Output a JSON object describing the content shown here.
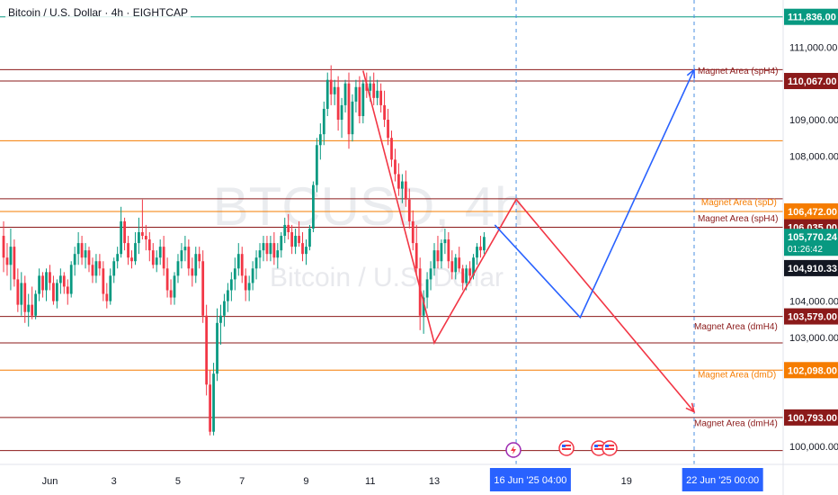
{
  "symbol_title": "Bitcoin / U.S. Dollar · 4h · EIGHTCAP",
  "watermark": {
    "main": "BTCUSD, 4h",
    "sub": "Bitcoin / U.S. Dollar"
  },
  "colors": {
    "bull": "#089981",
    "bear": "#f23645",
    "red_level": "#8b1a1a",
    "orange_level": "#f57c00",
    "blue_path": "#2962ff",
    "red_path": "#f23645",
    "dashed_time": "#4a90e2",
    "price_tag_dark": "#131722",
    "price_tag_green": "#089981",
    "time_tag": "#2962ff"
  },
  "chart_data": {
    "type": "candlestick",
    "ylim": [
      99500,
      112300
    ],
    "xlim": [
      0,
      218
    ],
    "y_ticks": [
      {
        "value": 111000,
        "label": "111,000.00"
      },
      {
        "value": 109000,
        "label": "109,000.00"
      },
      {
        "value": 108000,
        "label": "108,000.00"
      },
      {
        "value": 104000,
        "label": "104,000.00"
      },
      {
        "value": 103000,
        "label": "103,000.00"
      },
      {
        "value": 100000,
        "label": "100,000.00"
      }
    ],
    "x_ticks": [
      {
        "x": 13,
        "label": "Jun"
      },
      {
        "x": 31,
        "label": "3"
      },
      {
        "x": 49,
        "label": "5"
      },
      {
        "x": 67,
        "label": "7"
      },
      {
        "x": 85,
        "label": "9"
      },
      {
        "x": 103,
        "label": "11"
      },
      {
        "x": 121,
        "label": "13"
      },
      {
        "x": 175,
        "label": "19"
      }
    ],
    "time_tags": [
      {
        "x": 148,
        "label": "16 Jun '25  04:00"
      },
      {
        "x": 202,
        "label": "22 Jun '25  00:00"
      }
    ],
    "price_tags": [
      {
        "value": 111836,
        "label": "111,836.00",
        "kind": "green"
      },
      {
        "value": 110067,
        "label": "110,067.00",
        "kind": "darkred"
      },
      {
        "value": 106472,
        "label": "106,472.00",
        "kind": "orange"
      },
      {
        "value": 106035,
        "label": "106,035.00",
        "kind": "darkred"
      },
      {
        "value": 105770,
        "label": "105,770.24",
        "kind": "current",
        "sub": "01:26:42"
      },
      {
        "value": 104910,
        "label": "104,910.33",
        "kind": "dark"
      },
      {
        "value": 103579,
        "label": "103,579.00",
        "kind": "darkred"
      },
      {
        "value": 102098,
        "label": "102,098.00",
        "kind": "orange"
      },
      {
        "value": 100793,
        "label": "100,793.00",
        "kind": "darkred"
      }
    ],
    "levels": [
      {
        "value": 111836,
        "color": "#089981"
      },
      {
        "value": 110380,
        "color": "#8b1a1a"
      },
      {
        "value": 110067,
        "color": "#8b1a1a"
      },
      {
        "value": 108420,
        "color": "#f57c00"
      },
      {
        "value": 106820,
        "color": "#8b1a1a"
      },
      {
        "value": 106472,
        "color": "#f57c00"
      },
      {
        "value": 106035,
        "color": "#8b1a1a"
      },
      {
        "value": 103579,
        "color": "#8b1a1a"
      },
      {
        "value": 102850,
        "color": "#8b1a1a"
      },
      {
        "value": 102098,
        "color": "#f57c00"
      },
      {
        "value": 100793,
        "color": "#8b1a1a"
      },
      {
        "value": 99880,
        "color": "#8b1a1a"
      }
    ],
    "annotations": [
      {
        "x": 195,
        "value": 110260,
        "text": "Magnet Area (spH4)",
        "color": "#8b1a1a"
      },
      {
        "x": 196,
        "value": 106650,
        "text": "Magnet Area (spD)",
        "color": "#f57c00"
      },
      {
        "x": 195,
        "value": 106200,
        "text": "Magnet Area (spH4)",
        "color": "#8b1a1a"
      },
      {
        "x": 194,
        "value": 103220,
        "text": "Magnet Area (dmH4)",
        "color": "#8b1a1a"
      },
      {
        "x": 195,
        "value": 101900,
        "text": "Magnet Area (dmD)",
        "color": "#f57c00"
      },
      {
        "x": 194,
        "value": 100560,
        "text": "Magnet Area (dmH4)",
        "color": "#8b1a1a"
      }
    ],
    "red_path": [
      [
        101,
        110350
      ],
      [
        121,
        102850
      ],
      [
        144,
        106800
      ],
      [
        194,
        100950
      ]
    ],
    "blue_path": [
      [
        138,
        106100
      ],
      [
        162,
        103550
      ],
      [
        194,
        110380
      ]
    ],
    "time_lines": [
      144,
      194
    ],
    "candles": [
      [
        0,
        105800,
        106200,
        104800,
        105200
      ],
      [
        1,
        105200,
        105600,
        104700,
        105000
      ],
      [
        2,
        105000,
        106000,
        104300,
        105500
      ],
      [
        3,
        105500,
        105700,
        104400,
        104600
      ],
      [
        4,
        104600,
        104900,
        103700,
        103900
      ],
      [
        5,
        103900,
        104800,
        103600,
        104500
      ],
      [
        6,
        104500,
        104700,
        103400,
        103700
      ],
      [
        7,
        103700,
        104200,
        103300,
        103900
      ],
      [
        8,
        103900,
        104400,
        103500,
        103600
      ],
      [
        9,
        103600,
        104300,
        103500,
        104200
      ],
      [
        10,
        104200,
        104900,
        104000,
        104700
      ],
      [
        11,
        104700,
        104800,
        104100,
        104300
      ],
      [
        12,
        104300,
        104900,
        104000,
        104800
      ],
      [
        13,
        104800,
        105000,
        104300,
        104500
      ],
      [
        14,
        104500,
        104700,
        103900,
        104000
      ],
      [
        15,
        104000,
        104600,
        103800,
        104500
      ],
      [
        16,
        104500,
        104900,
        104200,
        104700
      ],
      [
        17,
        104700,
        104800,
        104200,
        104400
      ],
      [
        18,
        104400,
        104600,
        103900,
        104200
      ],
      [
        19,
        104200,
        105100,
        104100,
        105000
      ],
      [
        20,
        105000,
        105500,
        104700,
        105300
      ],
      [
        21,
        105300,
        105900,
        105000,
        105600
      ],
      [
        22,
        105600,
        105800,
        105000,
        105200
      ],
      [
        23,
        105200,
        105600,
        104900,
        105400
      ],
      [
        24,
        105400,
        105500,
        104800,
        105000
      ],
      [
        25,
        105000,
        105200,
        104500,
        104700
      ],
      [
        26,
        104700,
        105300,
        104500,
        105100
      ],
      [
        27,
        105100,
        105300,
        104700,
        104900
      ],
      [
        28,
        104900,
        105100,
        104000,
        104200
      ],
      [
        29,
        104200,
        104500,
        103800,
        104000
      ],
      [
        30,
        104000,
        104900,
        103900,
        104700
      ],
      [
        31,
        104700,
        105200,
        104500,
        105100
      ],
      [
        32,
        105100,
        105500,
        104900,
        105300
      ],
      [
        33,
        105300,
        106600,
        105200,
        106200
      ],
      [
        34,
        106200,
        106300,
        105400,
        105600
      ],
      [
        35,
        105600,
        105800,
        105000,
        105200
      ],
      [
        36,
        105200,
        105400,
        104900,
        105100
      ],
      [
        37,
        105100,
        105900,
        105000,
        105600
      ],
      [
        38,
        105600,
        106300,
        105300,
        105900
      ],
      [
        39,
        105900,
        106800,
        105700,
        105800
      ],
      [
        40,
        105800,
        106100,
        105400,
        105700
      ],
      [
        41,
        105700,
        105900,
        105100,
        105400
      ],
      [
        42,
        105400,
        105600,
        104900,
        105000
      ],
      [
        43,
        105000,
        105400,
        104800,
        105200
      ],
      [
        44,
        105200,
        105700,
        105000,
        105500
      ],
      [
        45,
        105500,
        105800,
        104700,
        104900
      ],
      [
        46,
        104900,
        105200,
        104100,
        104300
      ],
      [
        47,
        104300,
        104600,
        103900,
        104100
      ],
      [
        48,
        104100,
        104800,
        103900,
        104700
      ],
      [
        49,
        104700,
        105300,
        104500,
        105100
      ],
      [
        50,
        105100,
        105600,
        104900,
        105400
      ],
      [
        51,
        105400,
        105800,
        105100,
        105500
      ],
      [
        52,
        105500,
        105700,
        104700,
        104900
      ],
      [
        53,
        104900,
        105200,
        104400,
        104700
      ],
      [
        54,
        104700,
        105500,
        104500,
        105300
      ],
      [
        55,
        105300,
        105500,
        104900,
        105100
      ],
      [
        56,
        105100,
        105400,
        103400,
        103600
      ],
      [
        57,
        103600,
        103900,
        101400,
        101700
      ],
      [
        58,
        101700,
        102100,
        100300,
        100400
      ],
      [
        59,
        100400,
        102300,
        100300,
        102000
      ],
      [
        60,
        102000,
        103800,
        101800,
        103400
      ],
      [
        61,
        103400,
        103900,
        102800,
        103600
      ],
      [
        62,
        103600,
        104200,
        103300,
        104000
      ],
      [
        63,
        104000,
        104500,
        103700,
        104300
      ],
      [
        64,
        104300,
        104800,
        104000,
        104600
      ],
      [
        65,
        104600,
        105200,
        104300,
        104900
      ],
      [
        66,
        104900,
        105600,
        104700,
        105300
      ],
      [
        67,
        105300,
        105500,
        104500,
        104700
      ],
      [
        68,
        104700,
        104900,
        104000,
        104300
      ],
      [
        69,
        104300,
        104700,
        104000,
        104500
      ],
      [
        70,
        104500,
        105100,
        104300,
        104900
      ],
      [
        71,
        104900,
        105400,
        104600,
        105200
      ],
      [
        72,
        105200,
        105600,
        104900,
        105400
      ],
      [
        73,
        105400,
        105800,
        105100,
        105600
      ],
      [
        74,
        105600,
        105800,
        105100,
        105300
      ],
      [
        75,
        105300,
        105800,
        105100,
        105600
      ],
      [
        76,
        105600,
        105900,
        105000,
        105200
      ],
      [
        77,
        105200,
        105600,
        104900,
        105400
      ],
      [
        78,
        105400,
        105900,
        105200,
        105800
      ],
      [
        79,
        105800,
        106300,
        105600,
        106100
      ],
      [
        80,
        106100,
        106400,
        105700,
        105900
      ],
      [
        81,
        105900,
        106100,
        105300,
        105500
      ],
      [
        82,
        105500,
        106000,
        105300,
        105800
      ],
      [
        83,
        105800,
        106200,
        105500,
        105600
      ],
      [
        84,
        105600,
        105900,
        105100,
        105300
      ],
      [
        85,
        105300,
        105700,
        105000,
        105500
      ],
      [
        86,
        105500,
        106100,
        105400,
        106000
      ],
      [
        87,
        106000,
        107300,
        105900,
        107200
      ],
      [
        88,
        107200,
        108500,
        107000,
        108300
      ],
      [
        89,
        108300,
        108900,
        107900,
        108600
      ],
      [
        90,
        108600,
        109500,
        108300,
        109300
      ],
      [
        91,
        109300,
        110300,
        109100,
        110100
      ],
      [
        92,
        110100,
        110500,
        109400,
        109700
      ],
      [
        93,
        109700,
        110100,
        109400,
        109900
      ],
      [
        94,
        109900,
        110200,
        108700,
        109000
      ],
      [
        95,
        109000,
        109600,
        108500,
        109400
      ],
      [
        96,
        109400,
        110100,
        109200,
        110000
      ],
      [
        97,
        110000,
        110300,
        108200,
        108600
      ],
      [
        98,
        108600,
        109700,
        108400,
        109500
      ],
      [
        99,
        109500,
        110100,
        109200,
        109900
      ],
      [
        100,
        109900,
        110200,
        108900,
        109100
      ],
      [
        101,
        109100,
        110100,
        108900,
        110000
      ],
      [
        102,
        110000,
        110300,
        109600,
        109800
      ],
      [
        103,
        109800,
        110200,
        109500,
        110000
      ],
      [
        104,
        110000,
        110300,
        109400,
        109600
      ],
      [
        105,
        109600,
        110100,
        109400,
        109800
      ],
      [
        106,
        109800,
        110000,
        109200,
        109400
      ],
      [
        107,
        109400,
        109800,
        108800,
        109000
      ],
      [
        108,
        109000,
        109300,
        108300,
        108500
      ],
      [
        109,
        108500,
        108700,
        107700,
        107900
      ],
      [
        110,
        107900,
        108200,
        107300,
        107500
      ],
      [
        111,
        107500,
        107800,
        106900,
        107100
      ],
      [
        112,
        107100,
        107500,
        106700,
        107300
      ],
      [
        113,
        107300,
        107600,
        106600,
        106800
      ],
      [
        114,
        106800,
        107100,
        106000,
        106200
      ],
      [
        115,
        106200,
        106500,
        105400,
        105600
      ],
      [
        116,
        105600,
        106100,
        104700,
        104900
      ],
      [
        117,
        104900,
        105200,
        103200,
        103600
      ],
      [
        118,
        103600,
        104300,
        103100,
        104100
      ],
      [
        119,
        104100,
        104800,
        103800,
        104600
      ],
      [
        120,
        104600,
        105100,
        104300,
        104900
      ],
      [
        121,
        104900,
        105600,
        104700,
        105400
      ],
      [
        122,
        105400,
        105800,
        104900,
        105100
      ],
      [
        123,
        105100,
        105700,
        104900,
        105600
      ],
      [
        124,
        105600,
        106000,
        105300,
        105700
      ],
      [
        125,
        105700,
        105900,
        104900,
        105100
      ],
      [
        126,
        105100,
        105400,
        104600,
        104800
      ],
      [
        127,
        104800,
        105300,
        104600,
        105200
      ],
      [
        128,
        105200,
        105500,
        104800,
        104900
      ],
      [
        129,
        104900,
        105000,
        104300,
        104500
      ],
      [
        130,
        104500,
        105000,
        104300,
        104900
      ],
      [
        131,
        104900,
        105100,
        104500,
        104700
      ],
      [
        132,
        104700,
        105300,
        104600,
        105200
      ],
      [
        133,
        105200,
        105600,
        105000,
        105500
      ],
      [
        134,
        105500,
        105800,
        105200,
        105400
      ],
      [
        135,
        105400,
        105900,
        105300,
        105770
      ]
    ]
  }
}
